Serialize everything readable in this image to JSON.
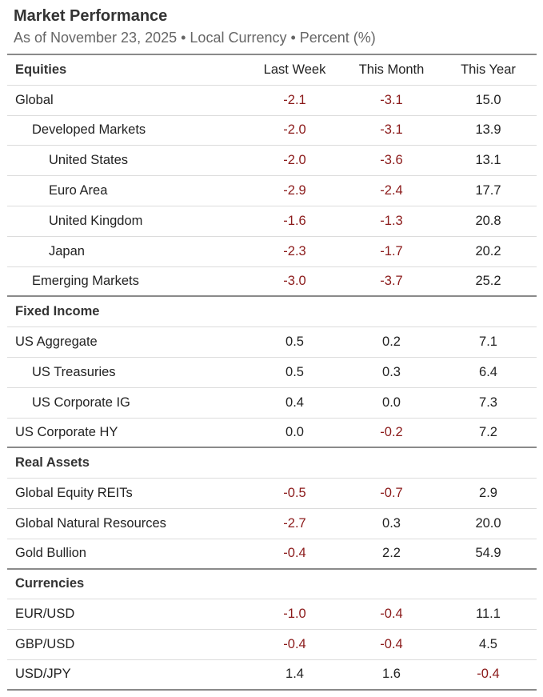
{
  "header": {
    "title": "Market Performance",
    "subtitle": "As of November 23, 2025 • Local Currency • Percent (%)"
  },
  "table": {
    "columns": [
      "Last Week",
      "This Month",
      "This Year"
    ],
    "sections": [
      {
        "name": "Equities",
        "rows": [
          {
            "label": "Global",
            "values": [
              "-2.1",
              "-3.1",
              "15.0"
            ]
          },
          {
            "label": "Developed Markets",
            "values": [
              "-2.0",
              "-3.1",
              "13.9"
            ]
          },
          {
            "label": "United States",
            "values": [
              "-2.0",
              "-3.6",
              "13.1"
            ]
          },
          {
            "label": "Euro Area",
            "values": [
              "-2.9",
              "-2.4",
              "17.7"
            ]
          },
          {
            "label": "United Kingdom",
            "values": [
              "-1.6",
              "-1.3",
              "20.8"
            ]
          },
          {
            "label": "Japan",
            "values": [
              "-2.3",
              "-1.7",
              "20.2"
            ]
          },
          {
            "label": "Emerging Markets",
            "values": [
              "-3.0",
              "-3.7",
              "25.2"
            ]
          }
        ]
      },
      {
        "name": "Fixed Income",
        "rows": [
          {
            "label": "US Aggregate",
            "values": [
              "0.5",
              "0.2",
              "7.1"
            ]
          },
          {
            "label": "US Treasuries",
            "values": [
              "0.5",
              "0.3",
              "6.4"
            ]
          },
          {
            "label": "US Corporate IG",
            "values": [
              "0.4",
              "0.0",
              "7.3"
            ]
          },
          {
            "label": "US Corporate HY",
            "values": [
              "0.0",
              "-0.2",
              "7.2"
            ]
          }
        ]
      },
      {
        "name": "Real Assets",
        "rows": [
          {
            "label": "Global Equity REITs",
            "values": [
              "-0.5",
              "-0.7",
              "2.9"
            ]
          },
          {
            "label": "Global Natural Resources",
            "values": [
              "-2.7",
              "0.3",
              "20.0"
            ]
          },
          {
            "label": "Gold Bullion",
            "values": [
              "-0.4",
              "2.2",
              "54.9"
            ]
          }
        ]
      },
      {
        "name": "Currencies",
        "rows": [
          {
            "label": "EUR/USD",
            "values": [
              "-1.0",
              "-0.4",
              "11.1"
            ]
          },
          {
            "label": "GBP/USD",
            "values": [
              "-0.4",
              "-0.4",
              "4.5"
            ]
          },
          {
            "label": "USD/JPY",
            "values": [
              "1.4",
              "1.6",
              "-0.4"
            ]
          }
        ]
      }
    ]
  }
}
